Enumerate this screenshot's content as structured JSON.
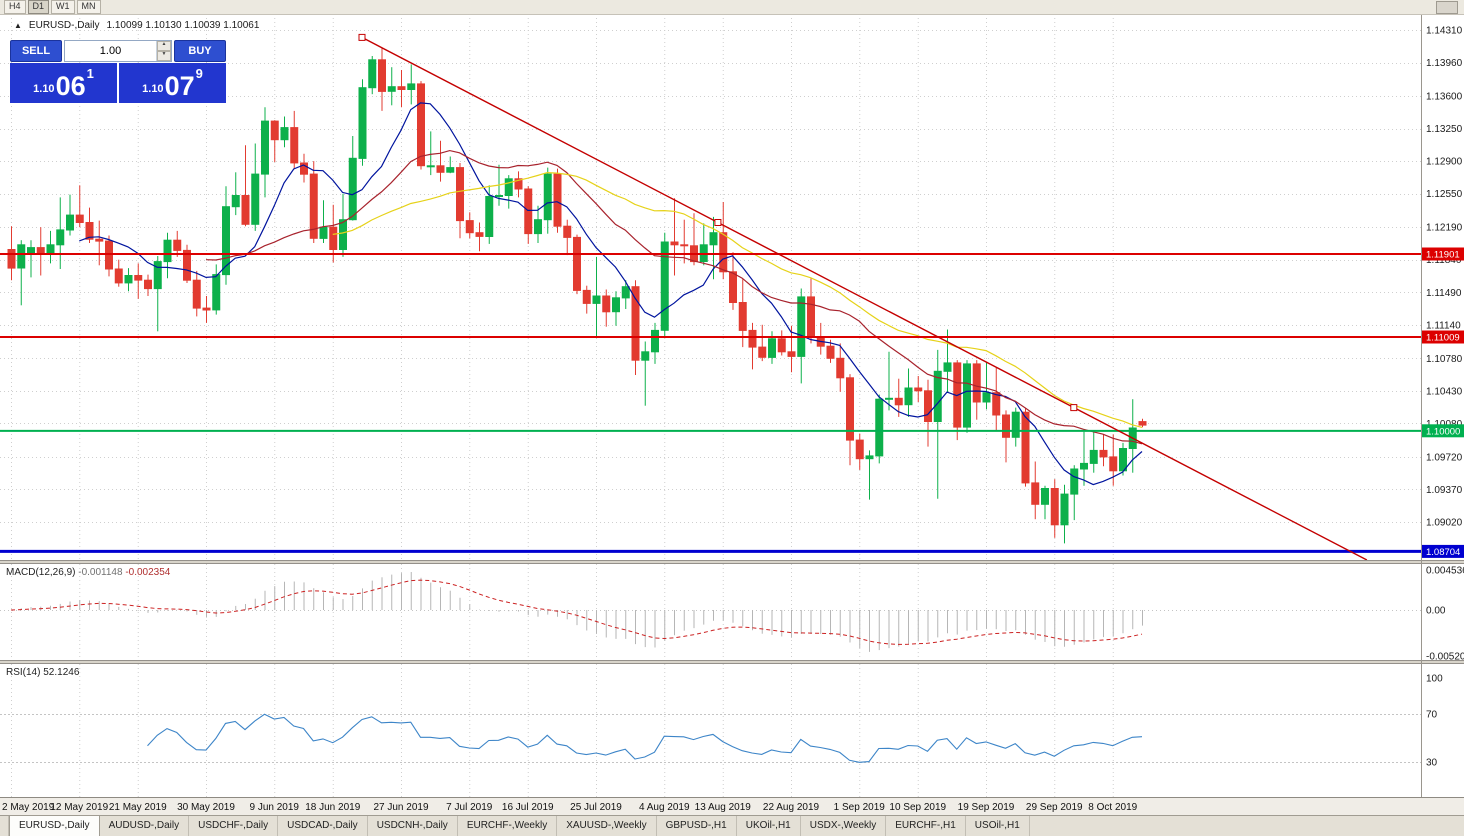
{
  "toolbar": {
    "timeframes": [
      "H4",
      "D1",
      "W1",
      "MN"
    ],
    "active": "D1"
  },
  "icons": {
    "one_click_toggle": "▲",
    "spinner_up": "▲",
    "spinner_down": "▼"
  },
  "chart": {
    "symbol_period": "EURUSD-,Daily",
    "ohlc_text": "1.10099 1.10130 1.10039 1.10061"
  },
  "one_click": {
    "sell_label": "SELL",
    "buy_label": "BUY",
    "volume": "1.00",
    "sell_price": {
      "prefix": "1.10",
      "big": "06",
      "pip": "1"
    },
    "buy_price": {
      "prefix": "1.10",
      "big": "07",
      "pip": "9"
    }
  },
  "chart_data": {
    "type": "candlestick",
    "symbol": "EURUSD",
    "timeframe": "Daily",
    "bull_color": "#0db04b",
    "bear_color": "#e23b30",
    "ylim": [
      1.08611,
      1.14482
    ],
    "price_axis_labels": [
      "1.14310",
      "1.13960",
      "1.13600",
      "1.13250",
      "1.12900",
      "1.12550",
      "1.12190",
      "1.11840",
      "1.11490",
      "1.11140",
      "1.10780",
      "1.10430",
      "1.10080",
      "1.09720",
      "1.09370",
      "1.09020"
    ],
    "x_labels": [
      {
        "text": "2 May 2019",
        "i": 0
      },
      {
        "text": "12 May 2019",
        "i": 7
      },
      {
        "text": "21 May 2019",
        "i": 13
      },
      {
        "text": "30 May 2019",
        "i": 20
      },
      {
        "text": "9 Jun 2019",
        "i": 27
      },
      {
        "text": "18 Jun 2019",
        "i": 33
      },
      {
        "text": "27 Jun 2019",
        "i": 40
      },
      {
        "text": "7 Jul 2019",
        "i": 47
      },
      {
        "text": "16 Jul 2019",
        "i": 53
      },
      {
        "text": "25 Jul 2019",
        "i": 60
      },
      {
        "text": "4 Aug 2019",
        "i": 67
      },
      {
        "text": "13 Aug 2019",
        "i": 73
      },
      {
        "text": "22 Aug 2019",
        "i": 80
      },
      {
        "text": "1 Sep 2019",
        "i": 87
      },
      {
        "text": "10 Sep 2019",
        "i": 93
      },
      {
        "text": "19 Sep 2019",
        "i": 100
      },
      {
        "text": "29 Sep 2019",
        "i": 107
      },
      {
        "text": "8 Oct 2019",
        "i": 113
      }
    ],
    "candles": [
      [
        1.1195,
        1.122,
        1.1162,
        1.1175
      ],
      [
        1.1175,
        1.1205,
        1.1135,
        1.12
      ],
      [
        1.119,
        1.1205,
        1.1165,
        1.1197
      ],
      [
        1.1197,
        1.1219,
        1.1167,
        1.119
      ],
      [
        1.119,
        1.1215,
        1.118,
        1.12
      ],
      [
        1.12,
        1.1251,
        1.1174,
        1.1216
      ],
      [
        1.1216,
        1.1254,
        1.121,
        1.1232
      ],
      [
        1.1232,
        1.1264,
        1.1219,
        1.1224
      ],
      [
        1.1224,
        1.124,
        1.1202,
        1.1206
      ],
      [
        1.1206,
        1.1226,
        1.1178,
        1.1204
      ],
      [
        1.1204,
        1.121,
        1.1166,
        1.1174
      ],
      [
        1.1174,
        1.1184,
        1.1155,
        1.1159
      ],
      [
        1.1159,
        1.1175,
        1.115,
        1.1167
      ],
      [
        1.1167,
        1.118,
        1.1142,
        1.1162
      ],
      [
        1.1162,
        1.1168,
        1.1145,
        1.1153
      ],
      [
        1.1153,
        1.1188,
        1.1107,
        1.1182
      ],
      [
        1.1182,
        1.1213,
        1.1164,
        1.1205
      ],
      [
        1.1205,
        1.1215,
        1.1187,
        1.1194
      ],
      [
        1.1194,
        1.12,
        1.1159,
        1.1162
      ],
      [
        1.1162,
        1.1172,
        1.1123,
        1.1132
      ],
      [
        1.1132,
        1.1145,
        1.1116,
        1.113
      ],
      [
        1.113,
        1.1179,
        1.1125,
        1.1168
      ],
      [
        1.1168,
        1.1263,
        1.1157,
        1.1241
      ],
      [
        1.1241,
        1.1278,
        1.1232,
        1.1253
      ],
      [
        1.1253,
        1.1307,
        1.122,
        1.1222
      ],
      [
        1.1222,
        1.1309,
        1.1215,
        1.1276
      ],
      [
        1.1276,
        1.1348,
        1.1251,
        1.1333
      ],
      [
        1.1333,
        1.1334,
        1.1289,
        1.1313
      ],
      [
        1.1313,
        1.1338,
        1.1305,
        1.1326
      ],
      [
        1.1326,
        1.1344,
        1.1282,
        1.1288
      ],
      [
        1.1288,
        1.1298,
        1.1267,
        1.1276
      ],
      [
        1.1276,
        1.129,
        1.1202,
        1.1207
      ],
      [
        1.1207,
        1.1248,
        1.1202,
        1.1219
      ],
      [
        1.1219,
        1.1243,
        1.1181,
        1.1195
      ],
      [
        1.1195,
        1.1255,
        1.1187,
        1.1227
      ],
      [
        1.1227,
        1.1317,
        1.1226,
        1.1293
      ],
      [
        1.1293,
        1.1378,
        1.1285,
        1.1369
      ],
      [
        1.1369,
        1.1403,
        1.1362,
        1.1399
      ],
      [
        1.1399,
        1.1412,
        1.1344,
        1.1365
      ],
      [
        1.1365,
        1.1391,
        1.135,
        1.137
      ],
      [
        1.137,
        1.1388,
        1.1348,
        1.1367
      ],
      [
        1.1367,
        1.1394,
        1.1351,
        1.1373
      ],
      [
        1.1373,
        1.1376,
        1.1281,
        1.1285
      ],
      [
        1.1285,
        1.1322,
        1.1275,
        1.1285
      ],
      [
        1.1285,
        1.1312,
        1.1268,
        1.1278
      ],
      [
        1.1278,
        1.1295,
        1.1277,
        1.1283
      ],
      [
        1.1283,
        1.1288,
        1.1207,
        1.1226
      ],
      [
        1.1226,
        1.1235,
        1.1207,
        1.1213
      ],
      [
        1.1213,
        1.1224,
        1.1193,
        1.1209
      ],
      [
        1.1209,
        1.1264,
        1.1201,
        1.1252
      ],
      [
        1.1252,
        1.1286,
        1.1242,
        1.1253
      ],
      [
        1.1253,
        1.1275,
        1.1239,
        1.1271
      ],
      [
        1.1271,
        1.1279,
        1.1251,
        1.126
      ],
      [
        1.126,
        1.1263,
        1.1201,
        1.1212
      ],
      [
        1.1212,
        1.1242,
        1.1202,
        1.1227
      ],
      [
        1.1227,
        1.1283,
        1.1212,
        1.1276
      ],
      [
        1.1276,
        1.1282,
        1.1213,
        1.122
      ],
      [
        1.122,
        1.1227,
        1.1189,
        1.1208
      ],
      [
        1.1208,
        1.1211,
        1.1147,
        1.1151
      ],
      [
        1.1151,
        1.1156,
        1.1126,
        1.1137
      ],
      [
        1.1137,
        1.1187,
        1.1101,
        1.1145
      ],
      [
        1.1145,
        1.1152,
        1.1112,
        1.1128
      ],
      [
        1.1128,
        1.115,
        1.1113,
        1.1143
      ],
      [
        1.1143,
        1.1162,
        1.1131,
        1.1155
      ],
      [
        1.1155,
        1.1162,
        1.106,
        1.1076
      ],
      [
        1.1076,
        1.1096,
        1.1027,
        1.1085
      ],
      [
        1.1085,
        1.1116,
        1.1072,
        1.1108
      ],
      [
        1.1108,
        1.1213,
        1.1101,
        1.1203
      ],
      [
        1.1203,
        1.125,
        1.1167,
        1.12
      ],
      [
        1.12,
        1.1227,
        1.118,
        1.1199
      ],
      [
        1.1199,
        1.1234,
        1.1178,
        1.1182
      ],
      [
        1.1182,
        1.1223,
        1.1178,
        1.12
      ],
      [
        1.12,
        1.123,
        1.1163,
        1.1213
      ],
      [
        1.1213,
        1.1246,
        1.1163,
        1.1171
      ],
      [
        1.1171,
        1.1192,
        1.113,
        1.1138
      ],
      [
        1.1138,
        1.1163,
        1.109,
        1.1108
      ],
      [
        1.1108,
        1.1116,
        1.1066,
        1.109
      ],
      [
        1.109,
        1.1114,
        1.1075,
        1.1079
      ],
      [
        1.1079,
        1.1107,
        1.1072,
        1.1099
      ],
      [
        1.1099,
        1.1108,
        1.1081,
        1.1085
      ],
      [
        1.1085,
        1.1113,
        1.1063,
        1.108
      ],
      [
        1.108,
        1.1153,
        1.1051,
        1.1144
      ],
      [
        1.1144,
        1.1164,
        1.1094,
        1.1101
      ],
      [
        1.1101,
        1.1116,
        1.1082,
        1.1091
      ],
      [
        1.1091,
        1.1098,
        1.1073,
        1.1078
      ],
      [
        1.1078,
        1.1094,
        1.1042,
        1.1057
      ],
      [
        1.1057,
        1.1061,
        1.0963,
        1.099
      ],
      [
        1.099,
        1.0997,
        1.0958,
        1.097
      ],
      [
        1.097,
        1.0979,
        1.0926,
        1.0973
      ],
      [
        1.0973,
        1.1039,
        1.0965,
        1.1034
      ],
      [
        1.1034,
        1.1085,
        1.1022,
        1.1035
      ],
      [
        1.1035,
        1.1056,
        1.1015,
        1.1028
      ],
      [
        1.1028,
        1.1067,
        1.1015,
        1.1046
      ],
      [
        1.1046,
        1.1059,
        1.1031,
        1.1043
      ],
      [
        1.1043,
        1.1055,
        1.0983,
        1.101
      ],
      [
        1.101,
        1.1087,
        1.0927,
        1.1064
      ],
      [
        1.1064,
        1.1109,
        1.1041,
        1.1073
      ],
      [
        1.1073,
        1.1076,
        1.099,
        1.1004
      ],
      [
        1.1004,
        1.1076,
        1.0998,
        1.1072
      ],
      [
        1.1072,
        1.1076,
        1.1012,
        1.1031
      ],
      [
        1.1031,
        1.1074,
        1.1023,
        1.1041
      ],
      [
        1.1041,
        1.1068,
        1.1,
        1.1017
      ],
      [
        1.1017,
        1.1022,
        1.0966,
        1.0993
      ],
      [
        1.0993,
        1.1025,
        1.0983,
        1.102
      ],
      [
        1.102,
        1.1024,
        1.094,
        1.0944
      ],
      [
        1.0944,
        1.0967,
        1.0905,
        1.0921
      ],
      [
        1.0921,
        1.0941,
        1.0905,
        1.0938
      ],
      [
        1.0938,
        1.0948,
        1.0885,
        1.0899
      ],
      [
        1.0899,
        1.0942,
        1.0879,
        1.0932
      ],
      [
        1.0932,
        1.0963,
        1.0904,
        1.0959
      ],
      [
        1.0959,
        1.0999,
        1.0941,
        1.0965
      ],
      [
        1.0965,
        1.0999,
        1.0955,
        1.0979
      ],
      [
        1.0979,
        1.0996,
        1.0962,
        1.0972
      ],
      [
        1.0972,
        1.0996,
        1.0941,
        1.0957
      ],
      [
        1.0957,
        1.0987,
        1.0952,
        1.0981
      ],
      [
        1.0981,
        1.1034,
        1.0955,
        1.1003
      ],
      [
        1.10099,
        1.1013,
        1.10039,
        1.10061
      ]
    ],
    "moving_averages": [
      {
        "period": 8,
        "color": "#00149e"
      },
      {
        "period": 21,
        "color": "#a8232d"
      },
      {
        "period": 34,
        "color": "#e6d219"
      }
    ],
    "hlines": [
      {
        "price": 1.11901,
        "label": "1.11901",
        "color": "#dc0000",
        "width": 2
      },
      {
        "price": 1.11009,
        "label": "1.11009",
        "color": "#dc0000",
        "width": 2
      },
      {
        "price": 1.1,
        "label": "1.10000",
        "color": "#00b050",
        "width": 2
      },
      {
        "price": 1.08704,
        "label": "1.08704",
        "color": "#0000d0",
        "width": 3
      }
    ],
    "trendline": {
      "i1": 36,
      "price1": 1.1423,
      "i2": 109,
      "price2": 1.1025,
      "color": "#c40000"
    },
    "macd": {
      "label": "MACD(12,26,9)",
      "value_main": "-0.001148",
      "value_signal": "-0.002354",
      "fast": 12,
      "slow": 26,
      "signal": 9,
      "axis_labels": [
        "0.004536",
        "0.00",
        "-0.005205"
      ],
      "axis_values": [
        0.004536,
        0,
        -0.005205
      ],
      "hist_color": "#b6b6b6",
      "signal_color": "#cc2222"
    },
    "rsi": {
      "label": "RSI(14)",
      "value": "52.1246",
      "period": 14,
      "color": "#3d85c8",
      "levels": [
        100,
        70,
        30
      ],
      "level_labels": [
        "100",
        "70",
        "30"
      ],
      "dashed_levels": [
        70,
        30
      ]
    }
  },
  "tabs": {
    "active": 0,
    "items": [
      "EURUSD-,Daily",
      "AUDUSD-,Daily",
      "USDCHF-,Daily",
      "USDCAD-,Daily",
      "USDCNH-,Daily",
      "EURCHF-,Weekly",
      "XAUUSD-,Weekly",
      "GBPUSD-,H1",
      "UKOil-,H1",
      "USDX-,Weekly",
      "EURCHF-,H1",
      "USOil-,H1"
    ]
  }
}
